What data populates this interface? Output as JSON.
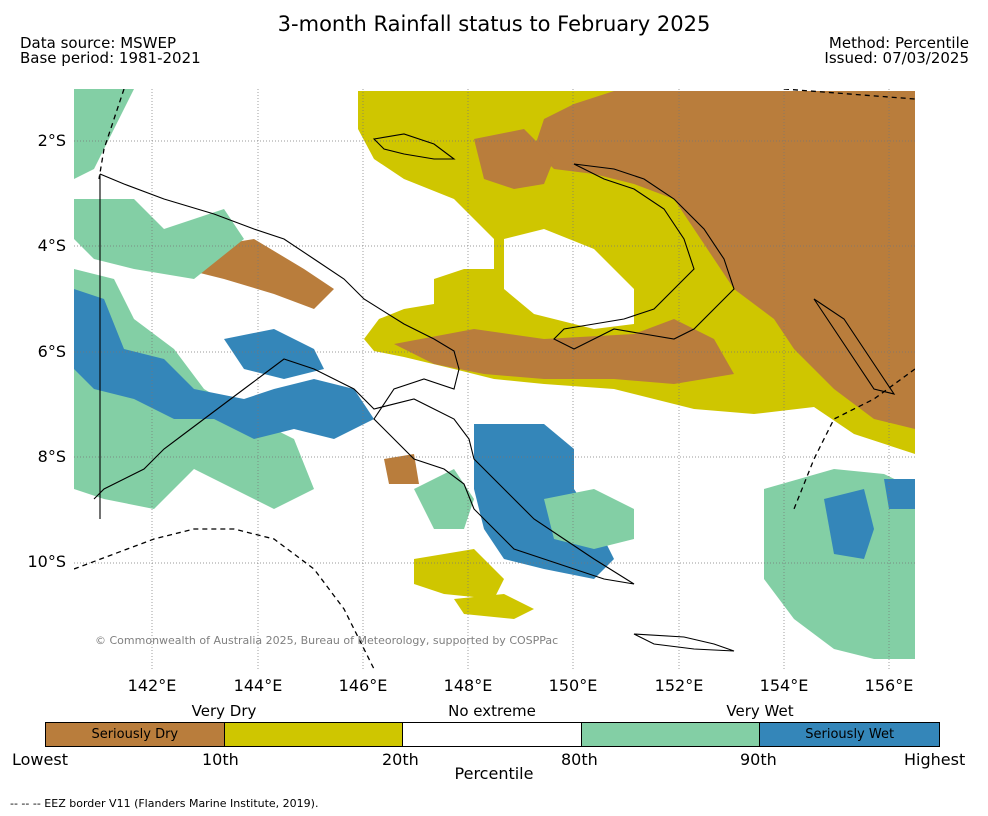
{
  "title": "3-month Rainfall status to February 2025",
  "meta_left": {
    "line1": "Data source: MSWEP",
    "line2": "Base period: 1981-2021"
  },
  "meta_right": {
    "line1": "Method: Percentile",
    "line2": "Issued: 07/03/2025"
  },
  "copyright": "© Commonwealth of Australia 2025, Bureau of Meteorology, supported by COSPPac",
  "y_ticks": [
    "2°S",
    "4°S",
    "6°S",
    "8°S",
    "10°S"
  ],
  "x_ticks": [
    "142°E",
    "144°E",
    "146°E",
    "148°E",
    "150°E",
    "152°E",
    "154°E",
    "156°E"
  ],
  "legend": {
    "category_labels": [
      "Very Dry",
      "No extreme",
      "Very Wet"
    ],
    "segments": [
      {
        "label": "Seriously Dry",
        "color": "#b97d3c"
      },
      {
        "label": "",
        "color": "#cfc600"
      },
      {
        "label": "",
        "color": "#ffffff"
      },
      {
        "label": "",
        "color": "#83cfa5"
      },
      {
        "label": "Seriously Wet",
        "color": "#3486b9"
      }
    ],
    "tick_labels": [
      "Lowest",
      "10th",
      "20th",
      "80th",
      "90th",
      "Highest"
    ],
    "axis_label": "Percentile"
  },
  "eez_note": "-- -- -- EEZ border V11 (Flanders Marine Institute, 2019).",
  "colors": {
    "seriously_dry": "#b97d3c",
    "very_dry": "#cfc600",
    "no_extreme": "#ffffff",
    "very_wet": "#83cfa5",
    "seriously_wet": "#3486b9"
  }
}
